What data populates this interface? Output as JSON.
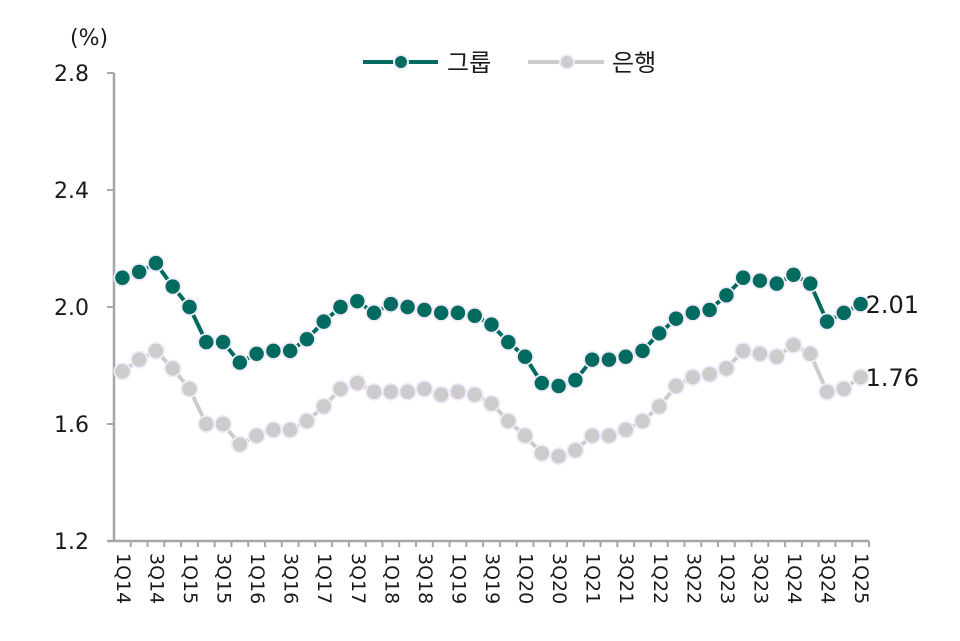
{
  "chart_data": {
    "type": "line",
    "title": "",
    "xlabel": "",
    "ylabel": "(%)",
    "unit_label": "(%)",
    "ylim": [
      1.2,
      2.8
    ],
    "yticks": [
      "1.2",
      "1.6",
      "2.0",
      "2.4",
      "2.8"
    ],
    "grid": false,
    "legend_position": "top-center",
    "categories": [
      "1Q14",
      "2Q14",
      "3Q14",
      "4Q14",
      "1Q15",
      "2Q15",
      "3Q15",
      "4Q15",
      "1Q16",
      "2Q16",
      "3Q16",
      "4Q16",
      "1Q17",
      "2Q17",
      "3Q17",
      "4Q17",
      "1Q18",
      "2Q18",
      "3Q18",
      "4Q18",
      "1Q19",
      "2Q19",
      "3Q19",
      "4Q19",
      "1Q20",
      "2Q20",
      "3Q20",
      "4Q20",
      "1Q21",
      "2Q21",
      "3Q21",
      "4Q21",
      "1Q22",
      "2Q22",
      "3Q22",
      "4Q22",
      "1Q23",
      "2Q23",
      "3Q23",
      "4Q23",
      "1Q24",
      "2Q24",
      "3Q24",
      "4Q24",
      "1Q25"
    ],
    "xtick_labels": [
      "1Q14",
      "3Q14",
      "1Q15",
      "3Q15",
      "1Q16",
      "3Q16",
      "1Q17",
      "3Q17",
      "1Q18",
      "3Q18",
      "1Q19",
      "3Q19",
      "1Q20",
      "3Q20",
      "1Q21",
      "3Q21",
      "1Q22",
      "3Q22",
      "1Q23",
      "3Q23",
      "1Q24",
      "3Q24",
      "1Q25"
    ],
    "series": [
      {
        "name": "그룹",
        "color": "#006B5E",
        "end_label": "2.01",
        "values": [
          2.1,
          2.12,
          2.15,
          2.07,
          2.0,
          1.88,
          1.88,
          1.81,
          1.84,
          1.85,
          1.85,
          1.89,
          1.95,
          2.0,
          2.02,
          1.98,
          2.01,
          2.0,
          1.99,
          1.98,
          1.98,
          1.97,
          1.94,
          1.88,
          1.83,
          1.74,
          1.73,
          1.75,
          1.82,
          1.82,
          1.83,
          1.85,
          1.91,
          1.96,
          1.98,
          1.99,
          2.04,
          2.1,
          2.09,
          2.08,
          2.11,
          2.08,
          1.95,
          1.98,
          2.01
        ]
      },
      {
        "name": "은행",
        "color": "#CCCCCC",
        "end_label": "1.76",
        "values": [
          1.78,
          1.82,
          1.85,
          1.79,
          1.72,
          1.6,
          1.6,
          1.53,
          1.56,
          1.58,
          1.58,
          1.61,
          1.66,
          1.72,
          1.74,
          1.71,
          1.71,
          1.71,
          1.72,
          1.7,
          1.71,
          1.7,
          1.67,
          1.61,
          1.56,
          1.5,
          1.49,
          1.51,
          1.56,
          1.56,
          1.58,
          1.61,
          1.66,
          1.73,
          1.76,
          1.77,
          1.79,
          1.85,
          1.84,
          1.83,
          1.87,
          1.84,
          1.71,
          1.72,
          1.76
        ]
      }
    ]
  },
  "style": {
    "axis_color": "#A6A6A6",
    "marker_halo": "#F3EAFB"
  }
}
